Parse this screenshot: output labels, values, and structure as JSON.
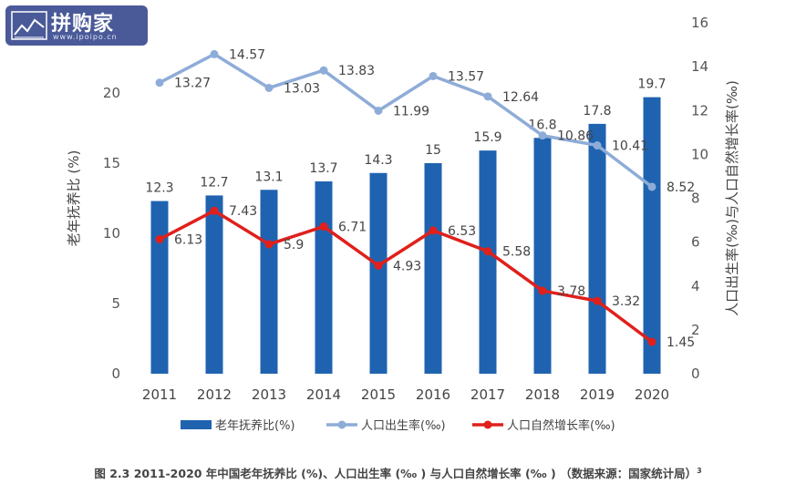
{
  "logo": {
    "name": "拼购家",
    "url": "www.ipoipo.cn"
  },
  "caption": {
    "text": "图 2.3 2011-2020 年中国老年抚养比 (%)、人口出生率 (‰ ) 与人口自然增长率 (‰ ) （数据来源：国家统计局）",
    "superscript": "3"
  },
  "chart_data": {
    "type": "bar",
    "categories": [
      "2011",
      "2012",
      "2013",
      "2014",
      "2015",
      "2016",
      "2017",
      "2018",
      "2019",
      "2020"
    ],
    "series": [
      {
        "name": "老年抚养比(%)",
        "kind": "bar",
        "axis": "left",
        "color": "#1f63b0",
        "values": [
          12.3,
          12.7,
          13.1,
          13.7,
          14.3,
          15,
          15.9,
          16.8,
          17.8,
          19.7
        ],
        "labels": [
          "12.3",
          "12.7",
          "13.1",
          "13.7",
          "14.3",
          "15",
          "15.9",
          "16.8",
          "17.8",
          "19.7"
        ]
      },
      {
        "name": "人口出生率(‰)",
        "kind": "line",
        "axis": "right",
        "color": "#8eacd8",
        "values": [
          13.27,
          14.57,
          13.03,
          13.83,
          11.99,
          13.57,
          12.64,
          10.86,
          10.41,
          8.52
        ],
        "labels": [
          "13.27",
          "14.57",
          "13.03",
          "13.83",
          "11.99",
          "13.57",
          "12.64",
          "10.86",
          "10.41",
          "8.52"
        ]
      },
      {
        "name": "人口自然增长率(‰)",
        "kind": "line",
        "axis": "right",
        "color": "#e0201b",
        "values": [
          6.13,
          7.43,
          5.9,
          6.71,
          4.93,
          6.53,
          5.58,
          3.78,
          3.32,
          1.45
        ],
        "labels": [
          "6.13",
          "7.43",
          "5.9",
          "6.71",
          "4.93",
          "6.53",
          "5.58",
          "3.78",
          "3.32",
          "1.45"
        ]
      }
    ],
    "ylabel": "老年抚养比 (%)",
    "y2label": "人口出生率(‰)与人口自然增长率(‰)",
    "ylim": [
      0,
      25
    ],
    "yticks": [
      "0",
      "5",
      "10",
      "15",
      "20"
    ],
    "y2lim": [
      0,
      16
    ],
    "y2ticks": [
      "0",
      "2",
      "4",
      "6",
      "8",
      "10",
      "12",
      "14",
      "16"
    ],
    "grid": false,
    "legend": "bottom"
  }
}
